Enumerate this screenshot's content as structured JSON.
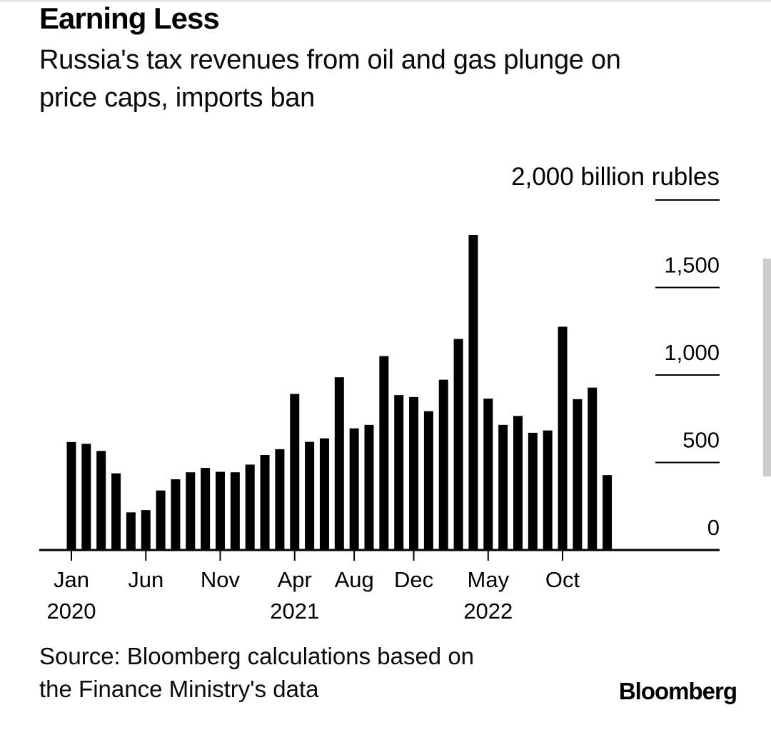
{
  "chart_data": {
    "type": "bar",
    "title": "Earning Less",
    "subtitle": "Russia's tax revenues from oil and gas plunge on price caps, imports ban",
    "subtitle_lines": [
      "Russia's tax revenues from oil and gas plunge on",
      "price caps, imports ban"
    ],
    "ylabel": "billion rubles",
    "xlabel": "",
    "ylim": [
      0,
      2000
    ],
    "grid": "right-side tick dashes only",
    "legend": "none",
    "bar_color": "#000000",
    "categories": [
      "Jan 2020",
      "Feb 2020",
      "Mar 2020",
      "Apr 2020",
      "May 2020",
      "Jun 2020",
      "Jul 2020",
      "Aug 2020",
      "Sep 2020",
      "Oct 2020",
      "Nov 2020",
      "Dec 2020",
      "Jan 2021",
      "Feb 2021",
      "Mar 2021",
      "Apr 2021",
      "May 2021",
      "Jun 2021",
      "Jul 2021",
      "Aug 2021",
      "Sep 2021",
      "Oct 2021",
      "Nov 2021",
      "Dec 2021",
      "Jan 2022",
      "Feb 2022",
      "Mar 2022",
      "Apr 2022",
      "May 2022",
      "Jun 2022",
      "Jul 2022",
      "Aug 2022",
      "Sep 2022",
      "Oct 2022",
      "Nov 2022",
      "Dec 2022",
      "Jan 2023"
    ],
    "values": [
      617,
      607,
      566,
      438,
      215,
      228,
      340,
      404,
      444,
      469,
      447,
      444,
      488,
      543,
      576,
      892,
      618,
      638,
      987,
      695,
      715,
      1108,
      885,
      874,
      793,
      973,
      1206,
      1800,
      865,
      715,
      766,
      670,
      683,
      1276,
      862,
      928,
      428
    ],
    "y_ticks": [
      {
        "value": 2000,
        "label": "2,000 billion rubles",
        "unit_label": true
      },
      {
        "value": 1500,
        "label": "1,500",
        "unit_label": false
      },
      {
        "value": 1000,
        "label": "1,000",
        "unit_label": false
      },
      {
        "value": 500,
        "label": "500",
        "unit_label": false
      },
      {
        "value": 0,
        "label": "0",
        "unit_label": false
      }
    ],
    "x_ticks": [
      {
        "month_index": 0,
        "line1": "Jan",
        "line2": "2020"
      },
      {
        "month_index": 5,
        "line1": "Jun",
        "line2": ""
      },
      {
        "month_index": 10,
        "line1": "Nov",
        "line2": ""
      },
      {
        "month_index": 15,
        "line1": "Apr",
        "line2": "2021"
      },
      {
        "month_index": 19,
        "line1": "Aug",
        "line2": ""
      },
      {
        "month_index": 23,
        "line1": "Dec",
        "line2": ""
      },
      {
        "month_index": 28,
        "line1": "May",
        "line2": "2022"
      },
      {
        "month_index": 33,
        "line1": "Oct",
        "line2": ""
      }
    ]
  },
  "footer": {
    "source_lines": [
      "Source: Bloomberg calculations based on",
      "the Finance Ministry's data"
    ],
    "logo_text": "Bloomberg"
  }
}
